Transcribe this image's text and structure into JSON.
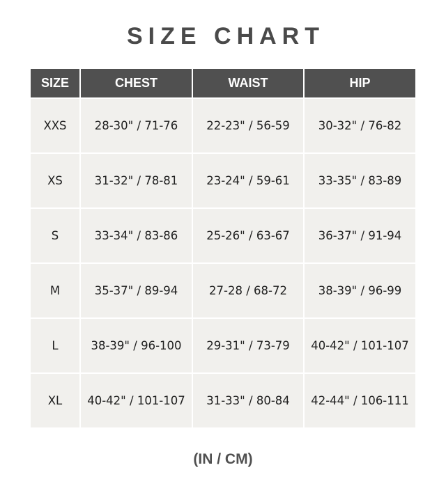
{
  "title": "SIZE CHART",
  "headers": [
    "SIZE",
    "CHEST",
    "WAIST",
    "HIP"
  ],
  "rows": [
    [
      "XXS",
      "28-30\" / 71-76",
      "22-23\" / 56-59",
      "30-32\" / 76-82"
    ],
    [
      "XS",
      "31-32\" / 78-81",
      "23-24\" / 59-61",
      "33-35\" / 83-89"
    ],
    [
      "S",
      "33-34\" / 83-86",
      "25-26\" / 63-67",
      "36-37\" / 91-94"
    ],
    [
      "M",
      "35-37\" / 89-94",
      "27-28 / 68-72",
      "38-39\" / 96-99"
    ],
    [
      "L",
      "38-39\" / 96-100",
      "29-31\" / 73-79",
      "40-42\" / 101-107"
    ],
    [
      "XL",
      "40-42\" / 101-107",
      "31-33\" / 80-84",
      "42-44\" / 106-111"
    ]
  ],
  "footer": "(IN / CM)",
  "colors": {
    "header_bg": "#505050",
    "cell_bg": "#f1f0ed",
    "title": "#4a4a4a"
  }
}
